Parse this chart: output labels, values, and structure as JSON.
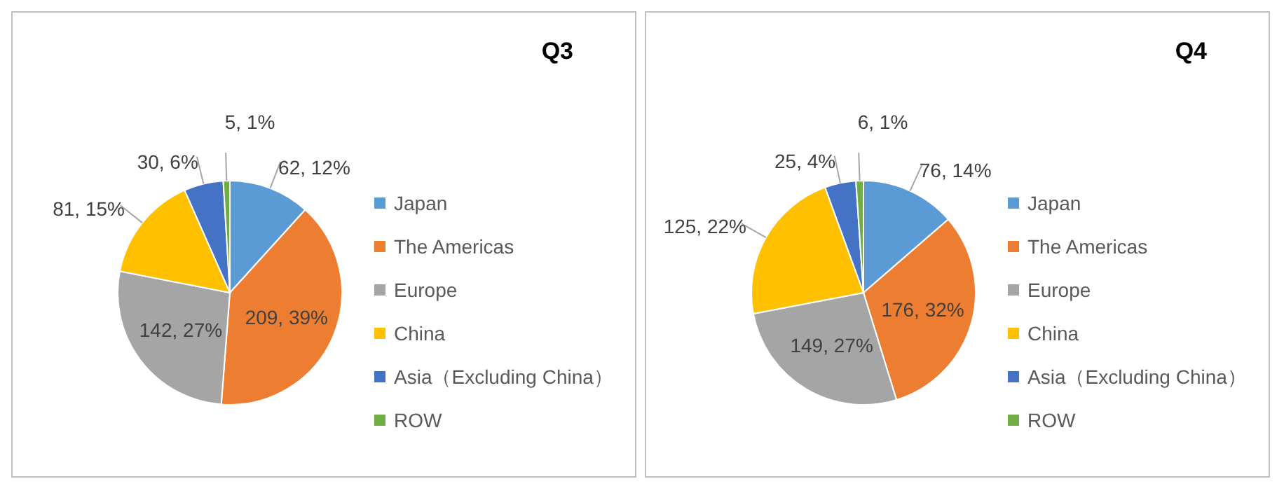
{
  "chart_data": [
    {
      "type": "pie",
      "title": "Q3",
      "categories": [
        "Japan",
        "The Americas",
        "Europe",
        "China",
        "Asia（Excluding China）",
        "ROW"
      ],
      "values": [
        62,
        209,
        142,
        81,
        30,
        5
      ],
      "value_labels": [
        "62, 12%",
        "209, 39%",
        "142, 27%",
        "81, 15%",
        "30, 6%",
        "5, 1%"
      ],
      "colors": [
        "#5b9bd5",
        "#ed7d31",
        "#a5a5a5",
        "#ffc000",
        "#4472c4",
        "#70ad47"
      ],
      "legend": "right"
    },
    {
      "type": "pie",
      "title": "Q4",
      "categories": [
        "Japan",
        "The Americas",
        "Europe",
        "China",
        "Asia（Excluding China）",
        "ROW"
      ],
      "values": [
        76,
        176,
        149,
        125,
        25,
        6
      ],
      "value_labels": [
        "76, 14%",
        "176, 32%",
        "149, 27%",
        "125, 22%",
        "25, 4%",
        "6, 1%"
      ],
      "colors": [
        "#5b9bd5",
        "#ed7d31",
        "#a5a5a5",
        "#ffc000",
        "#4472c4",
        "#70ad47"
      ],
      "legend": "right"
    }
  ]
}
